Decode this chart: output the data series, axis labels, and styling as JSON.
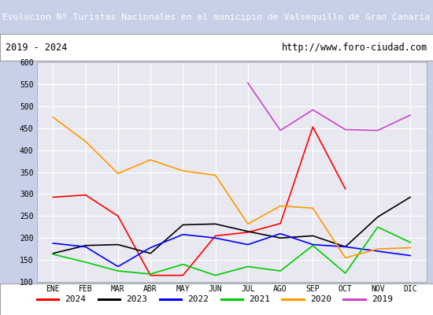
{
  "title": "Evolucion Nº Turistas Nacionales en el municipio de Valsequillo de Gran Canaria",
  "subtitle_left": "2019 - 2024",
  "subtitle_right": "http://www.foro-ciudad.com",
  "months": [
    "ENE",
    "FEB",
    "MAR",
    "ABR",
    "MAY",
    "JUN",
    "JUL",
    "AGO",
    "SEP",
    "OCT",
    "NOV",
    "DIC"
  ],
  "ylim": [
    100,
    600
  ],
  "yticks": [
    100,
    150,
    200,
    250,
    300,
    350,
    400,
    450,
    500,
    550,
    600
  ],
  "series": {
    "2024": {
      "color": "#ff0000",
      "values": [
        293,
        298,
        250,
        115,
        115,
        205,
        213,
        233,
        453,
        312,
        null,
        null
      ]
    },
    "2023": {
      "color": "#000000",
      "values": [
        165,
        183,
        185,
        165,
        230,
        232,
        215,
        200,
        205,
        180,
        248,
        293
      ]
    },
    "2022": {
      "color": "#0000ff",
      "values": [
        188,
        180,
        135,
        178,
        208,
        200,
        185,
        210,
        185,
        180,
        170,
        160
      ]
    },
    "2021": {
      "color": "#00cc00",
      "values": [
        163,
        145,
        125,
        118,
        140,
        115,
        135,
        125,
        183,
        120,
        225,
        190
      ]
    },
    "2020": {
      "color": "#ff9900",
      "values": [
        475,
        420,
        347,
        378,
        353,
        343,
        232,
        273,
        268,
        155,
        175,
        178
      ]
    },
    "2019": {
      "color": "#cc44cc",
      "values": [
        null,
        null,
        null,
        null,
        null,
        null,
        553,
        445,
        492,
        447,
        445,
        480
      ]
    }
  },
  "legend_order": [
    "2024",
    "2023",
    "2022",
    "2021",
    "2020",
    "2019"
  ],
  "title_bg_color": "#4f6bbf",
  "title_text_color": "#ffffff",
  "subtitle_bg_color": "#ffffff",
  "plot_bg_color": "#e8e8f0",
  "grid_color": "#ffffff",
  "outer_bg_color": "#c8d0e8"
}
